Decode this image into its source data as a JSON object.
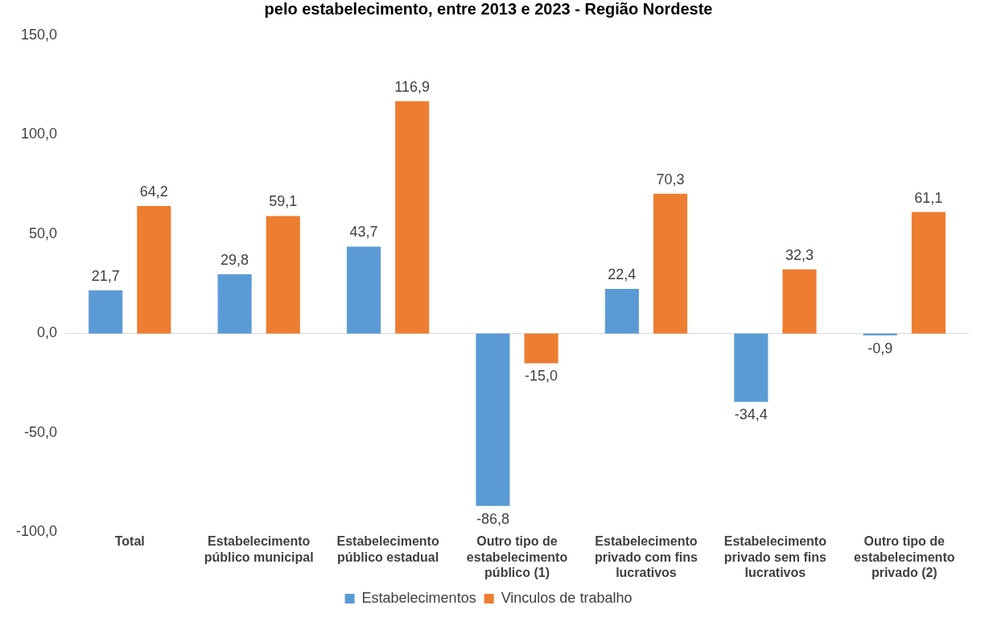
{
  "chart_data": {
    "type": "bar",
    "title": "pelo estabelecimento, entre 2013 e 2023 - Região Nordeste",
    "categories": [
      "Total",
      "Estabelecimento público municipal",
      "Estabelecimento público estadual",
      "Outro tipo de estabelecimento público (1)",
      "Estabelecimento privado com fins lucrativos",
      "Estabelecimento privado sem fins lucrativos",
      "Outro tipo de estabelecimento privado (2)"
    ],
    "series": [
      {
        "name": "Estabelecimentos",
        "color": "#5b9bd5",
        "values": [
          21.7,
          29.8,
          43.7,
          -86.8,
          22.4,
          -34.4,
          -0.9
        ],
        "value_labels": [
          "21,7",
          "29,8",
          "43,7",
          "-86,8",
          "22,4",
          "-34,4",
          "-0,9"
        ]
      },
      {
        "name": "Vinculos de trabalho",
        "color": "#ed7d31",
        "values": [
          64.2,
          59.1,
          116.9,
          -15.0,
          70.3,
          32.3,
          61.1
        ],
        "value_labels": [
          "64,2",
          "59,1",
          "116,9",
          "-15,0",
          "70,3",
          "32,3",
          "61,1"
        ]
      }
    ],
    "ylim": [
      -100,
      150
    ],
    "yticks": [
      {
        "value": -100,
        "label": "-100,0"
      },
      {
        "value": -50,
        "label": "-50,0"
      },
      {
        "value": 0,
        "label": "0,0"
      },
      {
        "value": 50,
        "label": "50,0"
      },
      {
        "value": 100,
        "label": "100,0"
      },
      {
        "value": 150,
        "label": "150,0"
      }
    ],
    "ref_lines": [
      {
        "axis": "y",
        "value": 0,
        "color": "#d9d9d9"
      }
    ],
    "grid": false,
    "legend": "bottom"
  }
}
